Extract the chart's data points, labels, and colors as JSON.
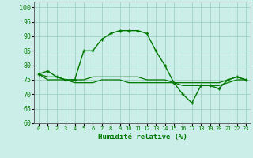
{
  "xlabel": "Humidité relative (%)",
  "bg_color": "#cceee8",
  "grid_color": "#99ccbb",
  "line_color": "#007700",
  "xlim": [
    -0.5,
    23.5
  ],
  "ylim": [
    60,
    102
  ],
  "yticks": [
    60,
    65,
    70,
    75,
    80,
    85,
    90,
    95,
    100
  ],
  "xticks": [
    0,
    1,
    2,
    3,
    4,
    5,
    6,
    7,
    8,
    9,
    10,
    11,
    12,
    13,
    14,
    15,
    16,
    17,
    18,
    19,
    20,
    21,
    22,
    23
  ],
  "line1": [
    77,
    78,
    76,
    75,
    75,
    85,
    85,
    89,
    91,
    92,
    92,
    92,
    91,
    85,
    80,
    74,
    70,
    67,
    73,
    73,
    72,
    75,
    76,
    75
  ],
  "line2": [
    77,
    76,
    76,
    75,
    75,
    75,
    76,
    76,
    76,
    76,
    76,
    76,
    75,
    75,
    75,
    74,
    74,
    74,
    74,
    74,
    74,
    75,
    76,
    75
  ],
  "line3": [
    77,
    75,
    75,
    75,
    74,
    74,
    74,
    75,
    75,
    75,
    74,
    74,
    74,
    74,
    74,
    74,
    73,
    73,
    73,
    73,
    73,
    74,
    75,
    75
  ]
}
